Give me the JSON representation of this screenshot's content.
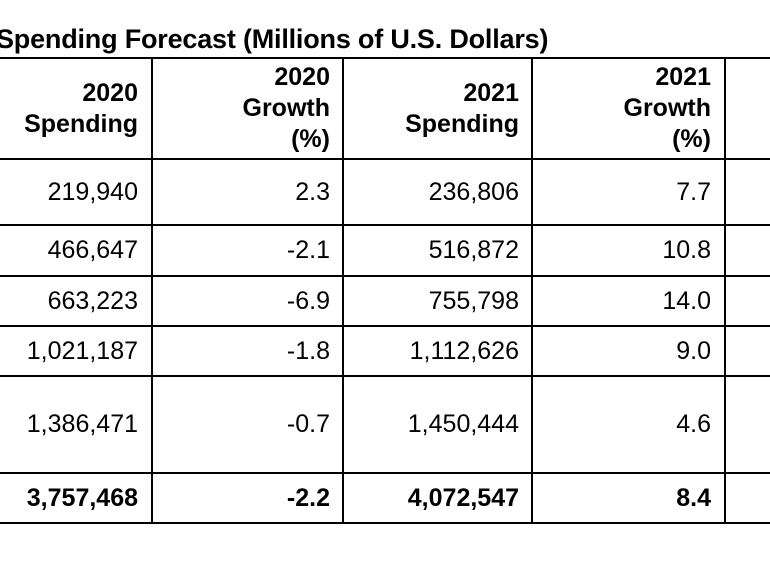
{
  "title": "Spending Forecast (Millions of U.S. Dollars)",
  "columns": [
    [
      "2020",
      "Spending"
    ],
    [
      "2020",
      "Growth",
      "(%)"
    ],
    [
      "2021",
      "Spending"
    ],
    [
      "2021",
      "Growth",
      "(%)"
    ]
  ],
  "rows": [
    [
      "219,940",
      "2.3",
      "236,806",
      "7.7"
    ],
    [
      "466,647",
      "-2.1",
      "516,872",
      "10.8"
    ],
    [
      "663,223",
      "-6.9",
      "755,798",
      "14.0"
    ],
    [
      "1,021,187",
      "-1.8",
      "1,112,626",
      "9.0"
    ],
    [
      "1,386,471",
      "-0.7",
      "1,450,444",
      "4.6"
    ]
  ],
  "total": [
    "3,757,468",
    "-2.2",
    "4,072,547",
    "8.4"
  ]
}
